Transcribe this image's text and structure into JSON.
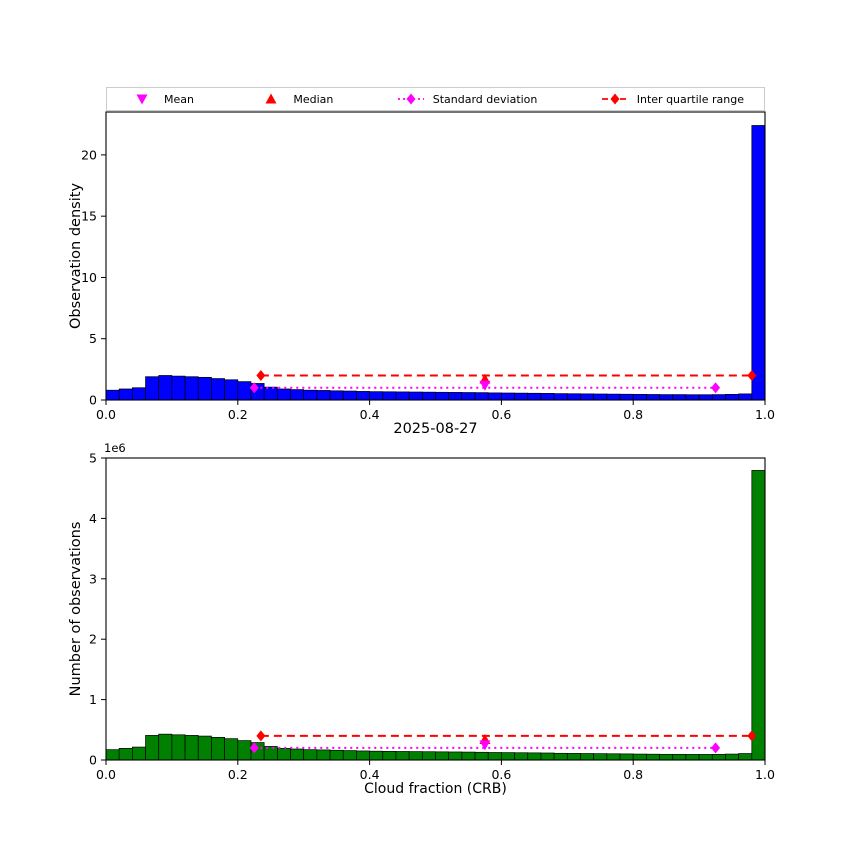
{
  "figure": {
    "title": "2025-08-27",
    "xlabel": "Cloud fraction (CRB)",
    "background": "#ffffff"
  },
  "legend": {
    "items": [
      {
        "label": "Mean",
        "marker": "triangle-down",
        "line": "none",
        "color": "#ff00ff"
      },
      {
        "label": "Median",
        "marker": "triangle-up",
        "line": "none",
        "color": "#ff0000"
      },
      {
        "label": "Standard deviation",
        "marker": "diamond",
        "line": "dotted",
        "color": "#ff00ff"
      },
      {
        "label": "Inter quartile range",
        "marker": "diamond",
        "line": "dashed",
        "color": "#ff0000"
      }
    ]
  },
  "chart_data": [
    {
      "type": "bar",
      "ylabel": "Observation density",
      "offset_label": "",
      "bar_color": "#0000ff",
      "edge_color": "#000000",
      "xlim": [
        0,
        1
      ],
      "ylim": [
        0,
        23.5
      ],
      "bin_width": 0.02,
      "xticks": [
        0.0,
        0.2,
        0.4,
        0.6,
        0.8,
        1.0
      ],
      "xtick_labels": [
        "0.0",
        "0.2",
        "0.4",
        "0.6",
        "0.8",
        "1.0"
      ],
      "yticks": [
        0,
        5,
        10,
        15,
        20
      ],
      "ytick_labels": [
        "0",
        "5",
        "10",
        "15",
        "20"
      ],
      "values": [
        0.8,
        0.9,
        1.0,
        1.9,
        2.0,
        1.95,
        1.9,
        1.85,
        1.75,
        1.65,
        1.5,
        1.35,
        1.05,
        0.9,
        0.85,
        0.8,
        0.78,
        0.75,
        0.73,
        0.7,
        0.68,
        0.67,
        0.66,
        0.65,
        0.64,
        0.63,
        0.62,
        0.61,
        0.6,
        0.58,
        0.57,
        0.56,
        0.55,
        0.54,
        0.52,
        0.51,
        0.5,
        0.49,
        0.48,
        0.47,
        0.46,
        0.45,
        0.44,
        0.44,
        0.43,
        0.43,
        0.44,
        0.46,
        0.5,
        22.4
      ],
      "annotations": {
        "mean": {
          "x": 0.575,
          "y": 1.2,
          "color": "#ff00ff"
        },
        "median": {
          "x": 0.575,
          "y": 1.7,
          "color": "#ff0000"
        },
        "std": {
          "x1": 0.225,
          "x2": 0.925,
          "y": 1.0,
          "color": "#ff00ff",
          "style": "dotted"
        },
        "iqr": {
          "x1": 0.235,
          "x2": 0.98,
          "y": 2.0,
          "color": "#ff0000",
          "style": "dashed"
        }
      }
    },
    {
      "type": "bar",
      "ylabel": "Number of observations",
      "offset_label": "1e6",
      "bar_color": "#008000",
      "edge_color": "#000000",
      "xlim": [
        0,
        1
      ],
      "ylim": [
        0,
        5000000
      ],
      "bin_width": 0.02,
      "xticks": [
        0.0,
        0.2,
        0.4,
        0.6,
        0.8,
        1.0
      ],
      "xtick_labels": [
        "0.0",
        "0.2",
        "0.4",
        "0.6",
        "0.8",
        "1.0"
      ],
      "yticks": [
        0,
        1000000,
        2000000,
        3000000,
        4000000,
        5000000
      ],
      "ytick_labels": [
        "0",
        "1",
        "2",
        "3",
        "4",
        "5"
      ],
      "values": [
        171000,
        193000,
        214000,
        407000,
        428000,
        417000,
        407000,
        396000,
        375000,
        353000,
        321000,
        289000,
        225000,
        193000,
        182000,
        171000,
        167000,
        161000,
        156000,
        150000,
        146000,
        143000,
        141000,
        139000,
        137000,
        135000,
        133000,
        131000,
        128000,
        124000,
        122000,
        120000,
        118000,
        116000,
        111000,
        109000,
        107000,
        105000,
        103000,
        101000,
        98000,
        96000,
        94000,
        94000,
        92000,
        92000,
        94000,
        98000,
        107000,
        4794000
      ],
      "annotations": {
        "mean": {
          "x": 0.575,
          "y": 250000,
          "color": "#ff00ff"
        },
        "median": {
          "x": 0.575,
          "y": 340000,
          "color": "#ff0000"
        },
        "std": {
          "x1": 0.225,
          "x2": 0.925,
          "y": 200000,
          "color": "#ff00ff",
          "style": "dotted"
        },
        "iqr": {
          "x1": 0.235,
          "x2": 0.98,
          "y": 400000,
          "color": "#ff0000",
          "style": "dashed"
        }
      }
    }
  ]
}
